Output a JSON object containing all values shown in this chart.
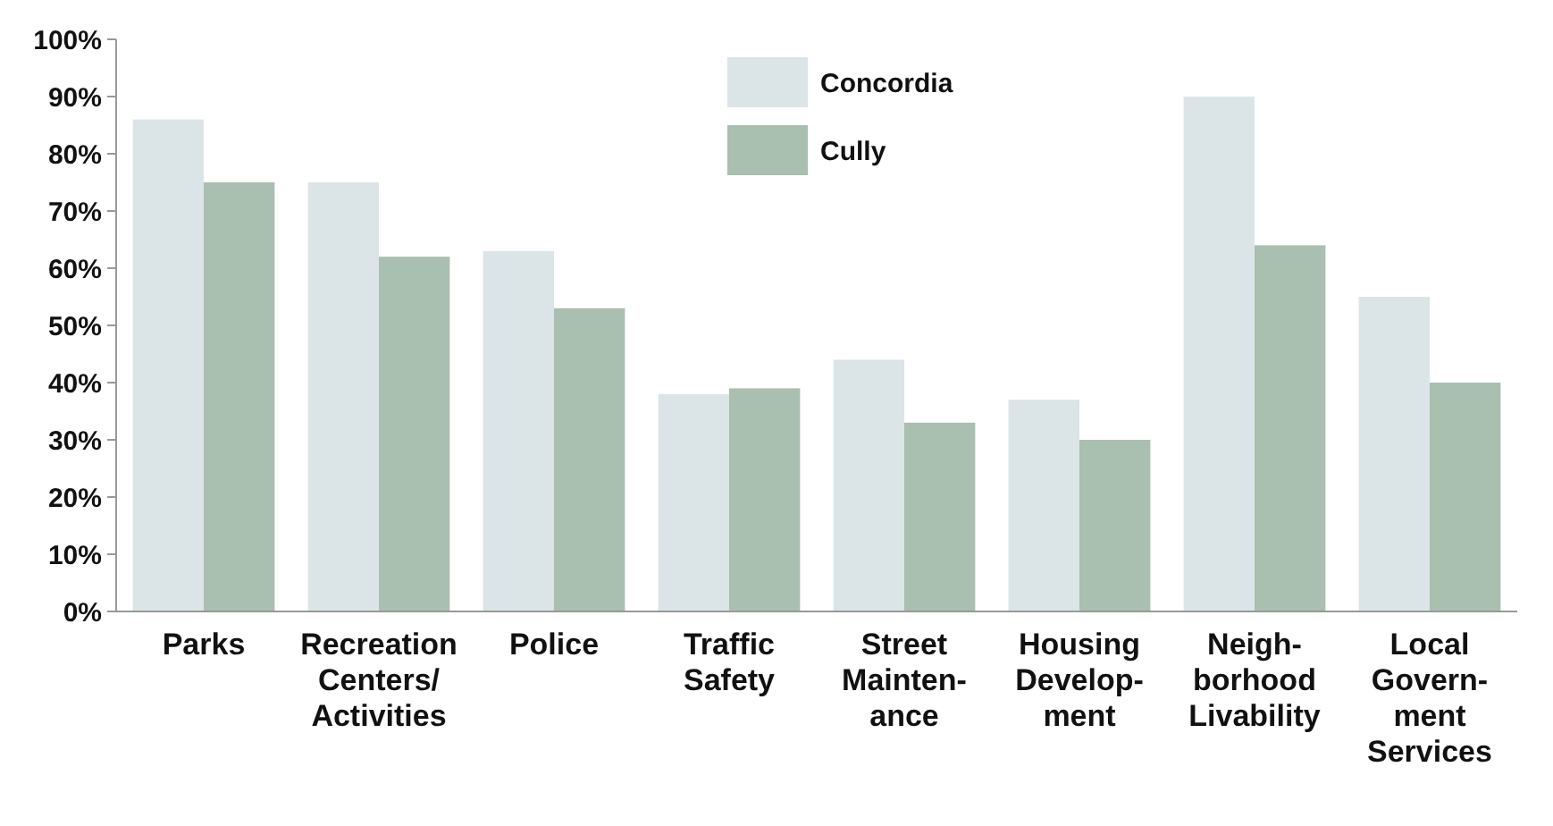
{
  "chart_data": {
    "type": "bar",
    "categories": [
      "Parks",
      "Recreation\nCenters/\nActivities",
      "Police",
      "Traffic\nSafety",
      "Street\nMainten-\nance",
      "Housing\nDevelop-\nment",
      "Neigh-\nborhood\nLivability",
      "Local\nGovern-\nment\nServices"
    ],
    "series": [
      {
        "name": "Concordia",
        "color": "#dbe5e7",
        "values": [
          86,
          75,
          63,
          38,
          44,
          37,
          90,
          55
        ]
      },
      {
        "name": "Cully",
        "color": "#a9bfaf",
        "values": [
          75,
          62,
          53,
          39,
          33,
          30,
          64,
          40
        ]
      }
    ],
    "ylim": [
      0,
      100
    ],
    "yticks": [
      {
        "value": 0,
        "label": "0%"
      },
      {
        "value": 10,
        "label": "10%"
      },
      {
        "value": 20,
        "label": "20%"
      },
      {
        "value": 30,
        "label": "30%"
      },
      {
        "value": 40,
        "label": "40%"
      },
      {
        "value": 50,
        "label": "50%"
      },
      {
        "value": 60,
        "label": "60%"
      },
      {
        "value": 70,
        "label": "70%"
      },
      {
        "value": 80,
        "label": "80%"
      },
      {
        "value": 90,
        "label": "90%"
      },
      {
        "value": 100,
        "label": "100%"
      }
    ],
    "legend": "top"
  }
}
